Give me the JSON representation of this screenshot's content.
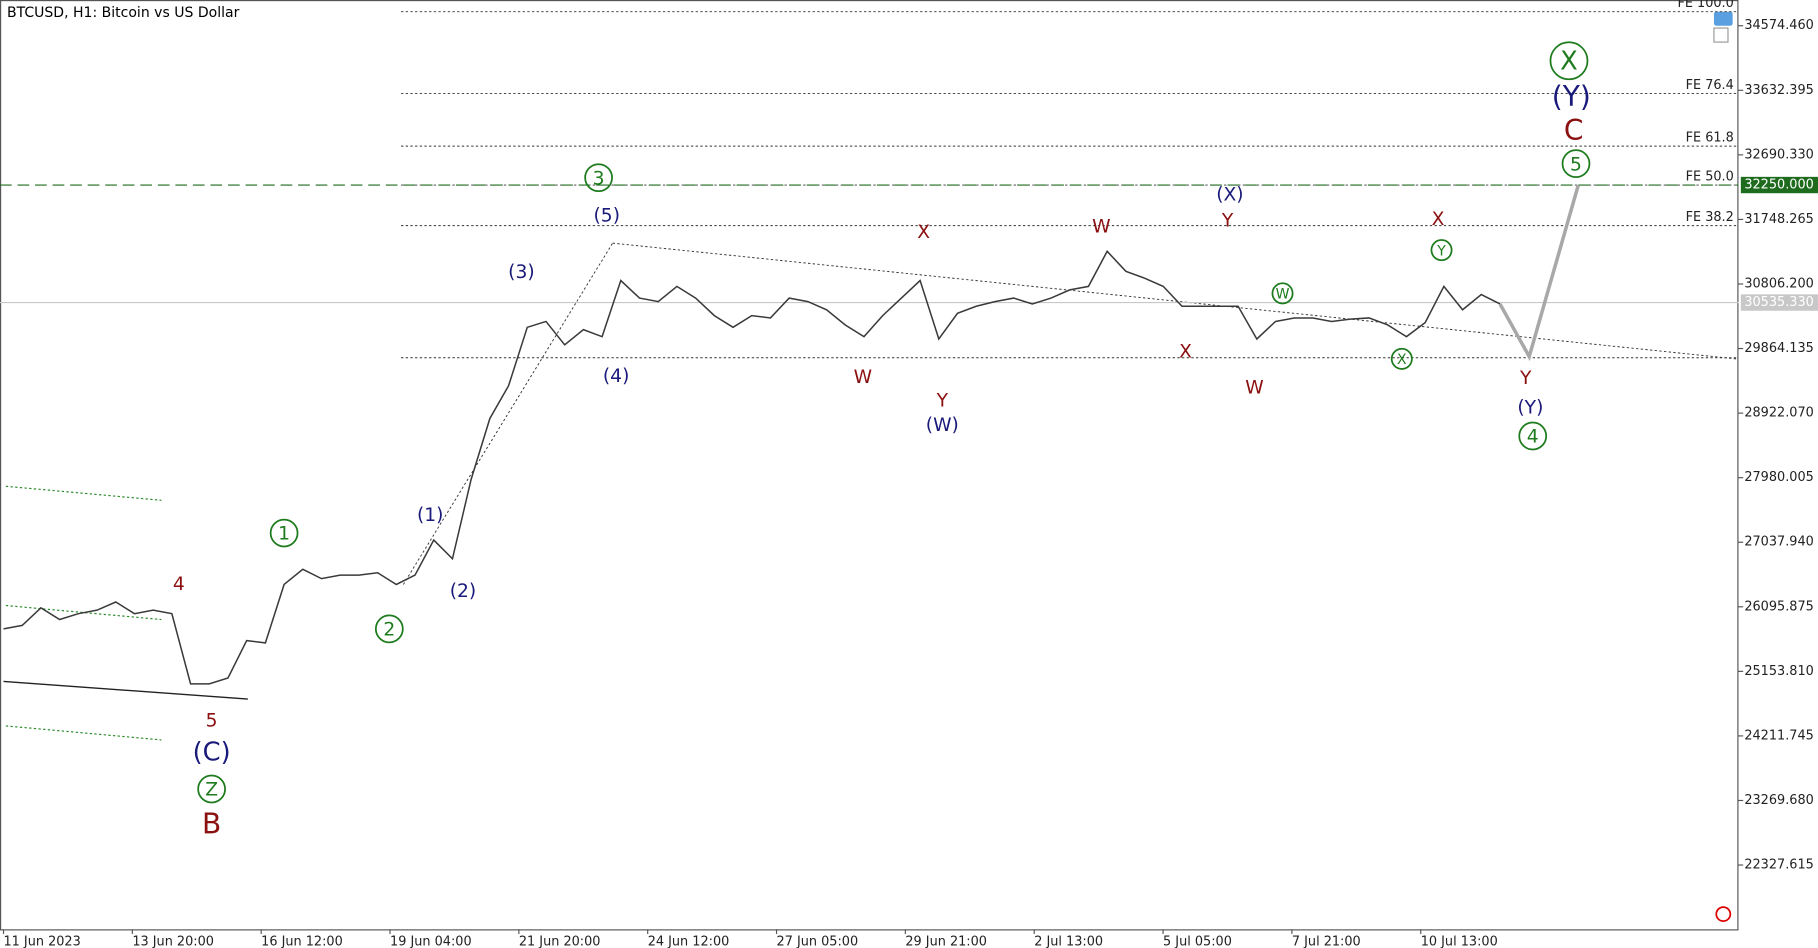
{
  "chart_data": {
    "type": "line",
    "title": "BTCUSD, H1:  Bitcoin vs US Dollar",
    "time_labels": [
      "11 Jun 2023",
      "13 Jun 20:00",
      "16 Jun 12:00",
      "19 Jun 04:00",
      "21 Jun 20:00",
      "24 Jun 12:00",
      "27 Jun 05:00",
      "29 Jun 21:00",
      "2 Jul 13:00",
      "5 Jul 05:00",
      "7 Jul 21:00",
      "10 Jul 13:00"
    ],
    "series": [
      {
        "color": "#3a3a3a",
        "values": [
          25773,
          25825,
          26080,
          25910,
          25995,
          26046,
          26166,
          25995,
          26046,
          25995,
          24972,
          24972,
          25057,
          25603,
          25569,
          26422,
          26643,
          26507,
          26558,
          26558,
          26592,
          26422,
          26558,
          27070,
          26797,
          27957,
          28844,
          29321,
          30174,
          30259,
          29918,
          30140,
          30038,
          30856,
          30600,
          30549,
          30771,
          30600,
          30344,
          30174,
          30344,
          30310,
          30600,
          30549,
          30430,
          30208,
          30038,
          30344,
          30600,
          30856,
          30003,
          30378,
          30481,
          30549,
          30600,
          30515,
          30600,
          30720,
          30771,
          31282,
          30992,
          30890,
          30771,
          30481,
          30481,
          30481,
          30481,
          30003,
          30259,
          30310,
          30310,
          30259,
          30293,
          30310,
          30208,
          30038,
          30242,
          30771,
          30430,
          30651,
          30515
        ]
      }
    ],
    "projection": {
      "color": "#a8a8a8",
      "values": [
        30515,
        29747,
        32250
      ]
    },
    "ylim": [
      21390,
      34950
    ],
    "yticks": [
      {
        "value": 34574.46,
        "label": "34574.460"
      },
      {
        "value": 33632.395,
        "label": "33632.395"
      },
      {
        "value": 32690.33,
        "label": "32690.330"
      },
      {
        "value": 31748.265,
        "label": "31748.265"
      },
      {
        "value": 30806.2,
        "label": "30806.200"
      },
      {
        "value": 29864.135,
        "label": "29864.135"
      },
      {
        "value": 28922.07,
        "label": "28922.070"
      },
      {
        "value": 27980.005,
        "label": "27980.005"
      },
      {
        "value": 27037.94,
        "label": "27037.940"
      },
      {
        "value": 26095.875,
        "label": "26095.875"
      },
      {
        "value": 25153.81,
        "label": "25153.810"
      },
      {
        "value": 24211.745,
        "label": "24211.745"
      },
      {
        "value": 23269.68,
        "label": "23269.680"
      },
      {
        "value": 22327.615,
        "label": "22327.615"
      }
    ],
    "price_lines": [
      {
        "value": 32250,
        "label": "32250.000",
        "color": "#1e6b1e"
      },
      {
        "value": 30535.33,
        "label": "30535.330",
        "color": "#c8c8c8"
      }
    ],
    "fib_levels": [
      {
        "value": 34779,
        "label": "FE 100.0"
      },
      {
        "value": 33585,
        "label": "FE 76.4"
      },
      {
        "value": 32818,
        "label": "FE 61.8"
      },
      {
        "value": 32250,
        "label": "FE 50.0"
      },
      {
        "value": 31658,
        "label": "FE 38.2"
      },
      {
        "value": 29730
      }
    ],
    "annotations": [
      {
        "text": "4"
      },
      {
        "text": "5"
      },
      {
        "text": "(C)"
      },
      {
        "text": "Z"
      },
      {
        "text": "B"
      },
      {
        "text": "1"
      },
      {
        "text": "2"
      },
      {
        "text": "(1)"
      },
      {
        "text": "(2)"
      },
      {
        "text": "(3)"
      },
      {
        "text": "(4)"
      },
      {
        "text": "(5)"
      },
      {
        "text": "3"
      },
      {
        "text": "X"
      },
      {
        "text": "W"
      },
      {
        "text": "Y"
      },
      {
        "text": "(W)"
      },
      {
        "text": "W"
      },
      {
        "text": "(X)"
      },
      {
        "text": "Y"
      },
      {
        "text": "X"
      },
      {
        "text": "W"
      },
      {
        "text": "W"
      },
      {
        "text": "X"
      },
      {
        "text": "Y"
      },
      {
        "text": "X"
      },
      {
        "text": "Y"
      },
      {
        "text": "(Y)"
      },
      {
        "text": "4"
      },
      {
        "text": "X"
      },
      {
        "text": "(Y)"
      },
      {
        "text": "C"
      },
      {
        "text": "5"
      }
    ]
  }
}
